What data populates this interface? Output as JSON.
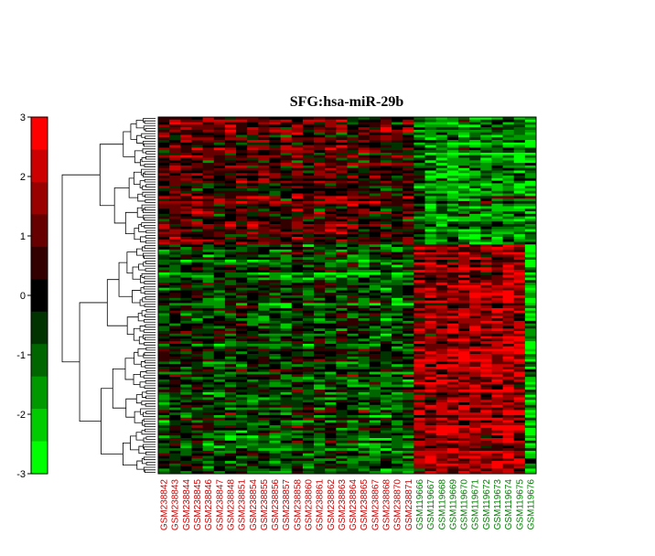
{
  "chart_data": {
    "type": "heatmap",
    "title": "SFG:hsa-miR-29b",
    "xlabel": "",
    "ylabel": "",
    "colorbar": {
      "range": [
        -3,
        3
      ],
      "ticks": [
        "3",
        "2",
        "1",
        "0",
        "-1",
        "-2",
        "-3"
      ],
      "low_color": "#00ff00",
      "mid_color": "#000000",
      "high_color": "#ff0000"
    },
    "row_dendrogram": true,
    "row_count": 140,
    "columns": [
      {
        "name": "GSM238842",
        "group": "red"
      },
      {
        "name": "GSM238843",
        "group": "red"
      },
      {
        "name": "GSM238844",
        "group": "red"
      },
      {
        "name": "GSM238845",
        "group": "red"
      },
      {
        "name": "GSM238846",
        "group": "red"
      },
      {
        "name": "GSM238847",
        "group": "red"
      },
      {
        "name": "GSM238848",
        "group": "red"
      },
      {
        "name": "GSM238851",
        "group": "red"
      },
      {
        "name": "GSM238854",
        "group": "red"
      },
      {
        "name": "GSM238855",
        "group": "red"
      },
      {
        "name": "GSM238856",
        "group": "red"
      },
      {
        "name": "GSM238857",
        "group": "red"
      },
      {
        "name": "GSM238858",
        "group": "red"
      },
      {
        "name": "GSM238860",
        "group": "red"
      },
      {
        "name": "GSM238861",
        "group": "red"
      },
      {
        "name": "GSM238862",
        "group": "red"
      },
      {
        "name": "GSM238863",
        "group": "red"
      },
      {
        "name": "GSM238864",
        "group": "red"
      },
      {
        "name": "GSM238865",
        "group": "red"
      },
      {
        "name": "GSM238867",
        "group": "red"
      },
      {
        "name": "GSM238868",
        "group": "red"
      },
      {
        "name": "GSM238870",
        "group": "red"
      },
      {
        "name": "GSM238871",
        "group": "red"
      },
      {
        "name": "GSM119666",
        "group": "green"
      },
      {
        "name": "GSM119667",
        "group": "green"
      },
      {
        "name": "GSM119668",
        "group": "green"
      },
      {
        "name": "GSM119669",
        "group": "green"
      },
      {
        "name": "GSM119670",
        "group": "green"
      },
      {
        "name": "GSM119671",
        "group": "green"
      },
      {
        "name": "GSM119672",
        "group": "green"
      },
      {
        "name": "GSM119673",
        "group": "green"
      },
      {
        "name": "GSM119674",
        "group": "green"
      },
      {
        "name": "GSM119675",
        "group": "green"
      },
      {
        "name": "GSM119676",
        "group": "green"
      }
    ],
    "group_colors": {
      "red": "#cc0000",
      "green": "#008000"
    }
  }
}
